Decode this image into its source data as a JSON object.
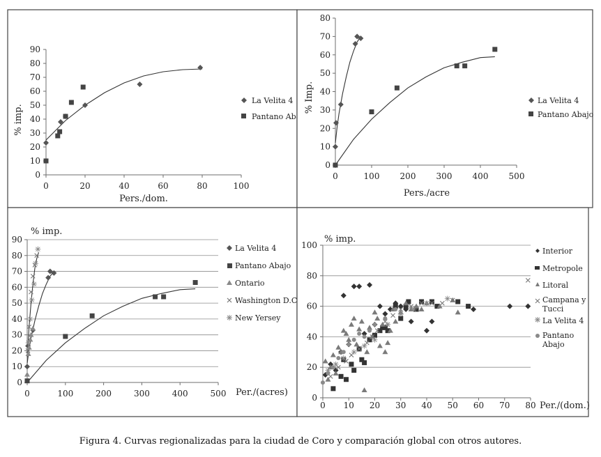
{
  "caption": "Figura 4. Curvas regionalizadas para la ciudad de Coro y comparación global con otros autores.",
  "chart_data": [
    {
      "type": "scatter",
      "title": "",
      "xlabel": "Pers./dom.",
      "ylabel": "% imp.",
      "xlim": [
        0,
        100
      ],
      "ylim": [
        0,
        90
      ],
      "x_ticks": [
        0,
        20,
        40,
        60,
        80,
        100
      ],
      "y_ticks": [
        0,
        10,
        20,
        30,
        40,
        50,
        60,
        70,
        80,
        90
      ],
      "grid": false,
      "legend_position": "right",
      "series": [
        {
          "name": "La Velita 4",
          "marker": "diamond",
          "color": "#555555",
          "x": [
            0,
            7.5,
            10,
            20,
            48,
            79
          ],
          "y": [
            23,
            38,
            42,
            50,
            65,
            77
          ]
        },
        {
          "name": "Pantano Abajo",
          "marker": "square",
          "color": "#444444",
          "x": [
            0,
            6,
            7,
            10,
            13,
            19
          ],
          "y": [
            10,
            28,
            31,
            42,
            52,
            63
          ]
        }
      ],
      "fits": [
        {
          "x": [
            0,
            10,
            20,
            30,
            40,
            50,
            60,
            70,
            80
          ],
          "y": [
            25,
            39,
            50,
            59,
            66,
            71,
            74,
            75.5,
            76
          ]
        }
      ]
    },
    {
      "type": "scatter",
      "title": "",
      "xlabel": "Pers./acre",
      "ylabel": "% Imp.",
      "xlim": [
        0,
        500
      ],
      "ylim": [
        0,
        80
      ],
      "x_ticks": [
        0,
        100,
        200,
        300,
        400,
        500
      ],
      "y_ticks": [
        0,
        10,
        20,
        30,
        40,
        50,
        60,
        70,
        80
      ],
      "grid": false,
      "legend_position": "right",
      "series": [
        {
          "name": "La Velita 4",
          "marker": "diamond",
          "color": "#555555",
          "x": [
            0,
            2,
            15,
            55,
            60,
            70
          ],
          "y": [
            10,
            23,
            33,
            66,
            70,
            69
          ]
        },
        {
          "name": "Pantano Abajo",
          "marker": "square",
          "color": "#444444",
          "x": [
            0,
            100,
            170,
            335,
            357,
            440
          ],
          "y": [
            0,
            29,
            42,
            54,
            54,
            63
          ]
        }
      ],
      "fits": [
        {
          "x": [
            0,
            5,
            10,
            20,
            30,
            40,
            50,
            60,
            70
          ],
          "y": [
            12,
            21,
            28,
            39,
            48,
            56,
            62,
            67,
            70
          ]
        },
        {
          "x": [
            0,
            50,
            100,
            150,
            200,
            250,
            300,
            350,
            400,
            440
          ],
          "y": [
            0,
            14,
            25,
            34,
            42,
            48,
            53,
            56,
            58.5,
            59
          ]
        }
      ]
    },
    {
      "type": "scatter",
      "title": "",
      "xlabel": "Per./(acres)",
      "ylabel": "% imp.",
      "xlim": [
        0,
        500
      ],
      "ylim": [
        0,
        90
      ],
      "x_ticks": [
        0,
        100,
        200,
        300,
        400,
        500
      ],
      "y_ticks": [
        0,
        10,
        20,
        30,
        40,
        50,
        60,
        70,
        80,
        90
      ],
      "grid": true,
      "legend_position": "right",
      "series": [
        {
          "name": "La Velita 4",
          "marker": "diamond",
          "color": "#555555",
          "x": [
            0,
            2,
            15,
            55,
            60,
            70
          ],
          "y": [
            10,
            23,
            33,
            66,
            70,
            69
          ]
        },
        {
          "name": "Pantano Abajo",
          "marker": "square",
          "color": "#444444",
          "x": [
            0,
            100,
            170,
            335,
            357,
            440
          ],
          "y": [
            1,
            29,
            42,
            54,
            54,
            63
          ]
        },
        {
          "name": "Ontario",
          "marker": "triangle",
          "color": "#8a8a8a",
          "x": [
            0,
            3,
            5,
            8,
            10,
            15
          ],
          "y": [
            5,
            18,
            22,
            27,
            30,
            34
          ]
        },
        {
          "name": "Washington D.C.",
          "marker": "x",
          "color": "#777777",
          "x": [
            2,
            5,
            10,
            15,
            20,
            25
          ],
          "y": [
            20,
            35,
            57,
            67,
            74,
            80
          ]
        },
        {
          "name": "New Yersey",
          "marker": "star",
          "color": "#8a8a8a",
          "x": [
            3,
            8,
            12,
            18,
            22,
            28
          ],
          "y": [
            25,
            40,
            52,
            62,
            75,
            84
          ]
        }
      ],
      "fits": [
        {
          "x": [
            0,
            5,
            10,
            20,
            30,
            40,
            50,
            60,
            70
          ],
          "y": [
            12,
            21,
            28,
            39,
            48,
            56,
            62,
            67,
            70
          ]
        },
        {
          "x": [
            0,
            50,
            100,
            150,
            200,
            250,
            300,
            350,
            400,
            440
          ],
          "y": [
            0,
            14,
            25,
            34,
            42,
            48,
            53,
            56,
            58.5,
            59
          ]
        },
        {
          "x": [
            0,
            5,
            10,
            15,
            20,
            25,
            30
          ],
          "y": [
            16,
            35,
            50,
            62,
            72,
            78,
            82
          ]
        }
      ]
    },
    {
      "type": "scatter",
      "title": "",
      "xlabel": "Per./(dom.)",
      "ylabel": "% imp.",
      "xlim": [
        0,
        80
      ],
      "ylim": [
        0,
        100
      ],
      "x_ticks": [
        0,
        10,
        20,
        30,
        40,
        50,
        60,
        70,
        80
      ],
      "y_ticks": [
        0,
        20,
        40,
        60,
        80,
        100
      ],
      "grid": true,
      "legend_position": "right",
      "series": [
        {
          "name": "Interior",
          "marker": "diamond",
          "color": "#333333",
          "x": [
            1,
            3,
            5,
            7,
            8,
            10,
            12,
            14,
            16,
            18,
            20,
            22,
            24,
            26,
            28,
            30,
            32,
            34,
            40,
            42,
            58,
            72,
            79
          ],
          "y": [
            15,
            22,
            18,
            30,
            67,
            35,
            73,
            73,
            42,
            74,
            48,
            60,
            55,
            58,
            62,
            60,
            58,
            50,
            44,
            50,
            58,
            60,
            60
          ]
        },
        {
          "name": "Metropole",
          "marker": "square",
          "color": "#333333",
          "x": [
            4,
            7,
            8,
            9,
            11,
            12,
            14,
            15,
            16,
            18,
            20,
            22,
            23,
            24,
            25,
            28,
            30,
            32,
            33,
            36,
            38,
            42,
            44,
            52,
            56
          ],
          "y": [
            6,
            14,
            25,
            12,
            22,
            18,
            32,
            25,
            23,
            38,
            41,
            44,
            46,
            46,
            44,
            60,
            52,
            60,
            63,
            58,
            63,
            63,
            60,
            63,
            60
          ]
        },
        {
          "name": "Litoral",
          "marker": "triangle",
          "color": "#7a7a7a",
          "x": [
            1,
            2,
            3,
            4,
            5,
            6,
            7,
            8,
            9,
            10,
            11,
            12,
            13,
            14,
            15,
            16,
            17,
            18,
            19,
            20,
            21,
            22,
            23,
            24,
            25,
            26,
            27,
            28,
            30,
            32,
            34,
            36,
            38,
            40,
            45,
            50,
            52
          ],
          "y": [
            24,
            12,
            20,
            28,
            16,
            33,
            30,
            44,
            42,
            38,
            48,
            52,
            35,
            45,
            50,
            5,
            30,
            46,
            40,
            56,
            52,
            34,
            48,
            30,
            36,
            44,
            58,
            50,
            56,
            62,
            58,
            60,
            58,
            62,
            60,
            64,
            56
          ]
        },
        {
          "name": "Campana y Tucci",
          "marker": "x",
          "color": "#777777",
          "x": [
            3,
            6,
            9,
            11,
            14,
            17,
            19,
            21,
            24,
            27,
            30,
            34,
            38,
            42,
            46,
            50,
            79
          ],
          "y": [
            14,
            20,
            24,
            28,
            32,
            36,
            40,
            44,
            50,
            54,
            58,
            60,
            62,
            62,
            62,
            64,
            77
          ]
        },
        {
          "name": "La Velita 4",
          "marker": "star",
          "color": "#8a8a8a",
          "x": [
            2,
            5,
            8,
            12,
            16,
            20,
            25,
            30,
            35,
            40,
            48
          ],
          "y": [
            18,
            22,
            26,
            30,
            34,
            38,
            48,
            55,
            58,
            62,
            65
          ]
        },
        {
          "name": "Pantano Abajo",
          "marker": "circle",
          "color": "#8a8a8a",
          "x": [
            0,
            2,
            4,
            6,
            8,
            10,
            12,
            14,
            16,
            18,
            20,
            24,
            28
          ],
          "y": [
            10,
            16,
            20,
            26,
            30,
            35,
            38,
            42,
            40,
            44,
            48,
            52,
            58
          ]
        }
      ]
    }
  ]
}
